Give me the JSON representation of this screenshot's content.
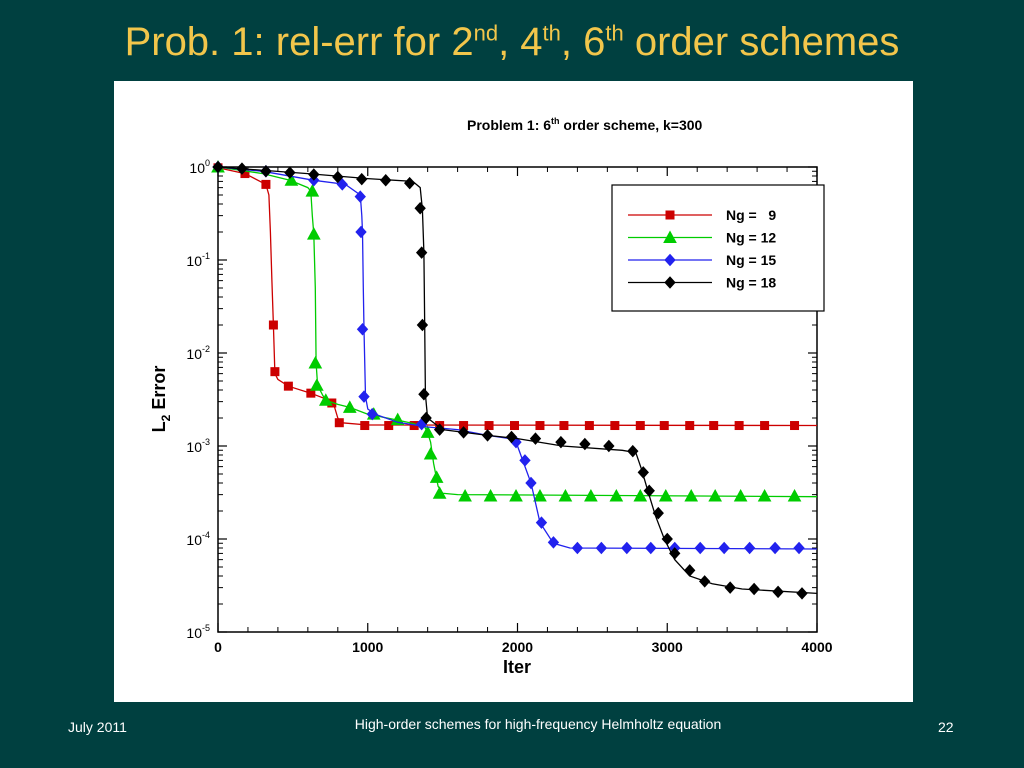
{
  "slide": {
    "title_parts": [
      "Prob. 1: rel-err for 2",
      "nd",
      ", 4",
      "th",
      ", 6",
      "th",
      " order schemes"
    ],
    "footer_date": "July 2011",
    "footer_center": "High-order schemes for high-frequency Helmholtz equation",
    "page_number": "22",
    "colors": {
      "background": "#004040",
      "title": "#f2c64b",
      "footer": "#ffffff"
    }
  },
  "chart_data": {
    "type": "line",
    "title": "Problem 1:   6th order scheme,  k=300",
    "title_parts": [
      "Problem 1:   6",
      "th",
      " order scheme,  k=300"
    ],
    "xlabel": "Iter",
    "ylabel": "L2 Error",
    "ylabel_parts": [
      "L",
      "2",
      " Error"
    ],
    "xlim": [
      0,
      4000
    ],
    "ylim": [
      1e-05,
      1
    ],
    "yscale": "log",
    "grid": false,
    "legend_position": "top-right",
    "x_ticks": [
      {
        "value": 0,
        "label": "0"
      },
      {
        "value": 1000,
        "label": "1000"
      },
      {
        "value": 2000,
        "label": "2000"
      },
      {
        "value": 3000,
        "label": "3000"
      },
      {
        "value": 4000,
        "label": "4000"
      }
    ],
    "y_ticks": [
      {
        "exp": 0,
        "base": "10",
        "sup": "0"
      },
      {
        "exp": -1,
        "base": "10",
        "sup": "-1"
      },
      {
        "exp": -2,
        "base": "10",
        "sup": "-2"
      },
      {
        "exp": -3,
        "base": "10",
        "sup": "-3"
      },
      {
        "exp": -4,
        "base": "10",
        "sup": "-4"
      },
      {
        "exp": -5,
        "base": "10",
        "sup": "-5"
      }
    ],
    "series": [
      {
        "name": "Ng =   9",
        "color": "#cc0000",
        "marker": "square",
        "points": [
          [
            0,
            0.98
          ],
          [
            180,
            0.85
          ],
          [
            320,
            0.65
          ],
          [
            340,
            0.5
          ],
          [
            350,
            0.2
          ],
          [
            360,
            0.06
          ],
          [
            370,
            0.02
          ],
          [
            380,
            0.006
          ],
          [
            400,
            0.0052
          ],
          [
            470,
            0.0044
          ],
          [
            620,
            0.0037
          ],
          [
            700,
            0.0033
          ],
          [
            770,
            0.0029
          ],
          [
            800,
            0.002
          ],
          [
            820,
            0.00178
          ],
          [
            1000,
            0.00168
          ],
          [
            4000,
            0.00166
          ]
        ],
        "markers": [
          [
            0,
            0.98
          ],
          [
            180,
            0.85
          ],
          [
            320,
            0.65
          ],
          [
            370,
            0.02
          ],
          [
            380,
            0.0063
          ],
          [
            470,
            0.0044
          ],
          [
            620,
            0.0037
          ],
          [
            760,
            0.0029
          ],
          [
            810,
            0.00178
          ],
          [
            980,
            0.00166
          ],
          [
            1140,
            0.00166
          ],
          [
            1310,
            0.00166
          ],
          [
            1480,
            0.00166
          ],
          [
            1640,
            0.00166
          ],
          [
            1810,
            0.00166
          ],
          [
            1980,
            0.00166
          ],
          [
            2150,
            0.00166
          ],
          [
            2310,
            0.00166
          ],
          [
            2480,
            0.00166
          ],
          [
            2650,
            0.00166
          ],
          [
            2820,
            0.00166
          ],
          [
            2980,
            0.00166
          ],
          [
            3150,
            0.00166
          ],
          [
            3310,
            0.00166
          ],
          [
            3480,
            0.00166
          ],
          [
            3650,
            0.00166
          ],
          [
            3850,
            0.00166
          ]
        ]
      },
      {
        "name": "Ng = 12",
        "color": "#00cc00",
        "marker": "triangle",
        "points": [
          [
            0,
            1.0
          ],
          [
            300,
            0.85
          ],
          [
            480,
            0.72
          ],
          [
            600,
            0.6
          ],
          [
            620,
            0.55
          ],
          [
            630,
            0.3
          ],
          [
            640,
            0.19
          ],
          [
            650,
            0.05
          ],
          [
            655,
            0.0078
          ],
          [
            665,
            0.0045
          ],
          [
            700,
            0.0035
          ],
          [
            720,
            0.0031
          ],
          [
            800,
            0.0028
          ],
          [
            880,
            0.0026
          ],
          [
            1000,
            0.0022
          ],
          [
            1200,
            0.0019
          ],
          [
            1300,
            0.00175
          ],
          [
            1380,
            0.0016
          ],
          [
            1400,
            0.0014
          ],
          [
            1420,
            0.0011
          ],
          [
            1440,
            0.00065
          ],
          [
            1470,
            0.00037
          ],
          [
            1500,
            0.00031
          ],
          [
            1600,
            0.0003
          ],
          [
            4000,
            0.000285
          ]
        ],
        "markers": [
          [
            0,
            1.0
          ],
          [
            490,
            0.72
          ],
          [
            630,
            0.55
          ],
          [
            640,
            0.19
          ],
          [
            650,
            0.0078
          ],
          [
            660,
            0.0045
          ],
          [
            720,
            0.0031
          ],
          [
            880,
            0.0026
          ],
          [
            1040,
            0.0022
          ],
          [
            1200,
            0.00192
          ],
          [
            1400,
            0.0014
          ],
          [
            1420,
            0.00082
          ],
          [
            1460,
            0.00046
          ],
          [
            1480,
            0.00031
          ],
          [
            1650,
            0.00029
          ],
          [
            1820,
            0.00029
          ],
          [
            1990,
            0.00029
          ],
          [
            2150,
            0.00029
          ],
          [
            2320,
            0.00029
          ],
          [
            2490,
            0.00029
          ],
          [
            2660,
            0.00029
          ],
          [
            2820,
            0.00029
          ],
          [
            2990,
            0.00029
          ],
          [
            3160,
            0.00029
          ],
          [
            3320,
            0.00029
          ],
          [
            3490,
            0.00029
          ],
          [
            3650,
            0.00029
          ],
          [
            3850,
            0.00029
          ]
        ]
      },
      {
        "name": "Ng = 15",
        "color": "#2222ee",
        "marker": "diamond",
        "points": [
          [
            0,
            1.0
          ],
          [
            300,
            0.9
          ],
          [
            640,
            0.72
          ],
          [
            850,
            0.65
          ],
          [
            950,
            0.5
          ],
          [
            960,
            0.3
          ],
          [
            965,
            0.2
          ],
          [
            970,
            0.05
          ],
          [
            975,
            0.018
          ],
          [
            985,
            0.0034
          ],
          [
            1000,
            0.0025
          ],
          [
            1050,
            0.0022
          ],
          [
            1200,
            0.0018
          ],
          [
            1400,
            0.0016
          ],
          [
            1600,
            0.0015
          ],
          [
            1800,
            0.0013
          ],
          [
            1950,
            0.0012
          ],
          [
            2000,
            0.001
          ],
          [
            2050,
            0.0006
          ],
          [
            2090,
            0.0004
          ],
          [
            2150,
            0.00015
          ],
          [
            2240,
            9e-05
          ],
          [
            2350,
            8e-05
          ],
          [
            4000,
            7.8e-05
          ]
        ],
        "markers": [
          [
            0,
            1.0
          ],
          [
            320,
            0.9
          ],
          [
            640,
            0.72
          ],
          [
            830,
            0.65
          ],
          [
            950,
            0.48
          ],
          [
            955,
            0.2
          ],
          [
            965,
            0.018
          ],
          [
            975,
            0.0034
          ],
          [
            1030,
            0.0022
          ],
          [
            1360,
            0.00172
          ],
          [
            1990,
            0.0011
          ],
          [
            2050,
            0.0007
          ],
          [
            2090,
            0.0004
          ],
          [
            2160,
            0.00015
          ],
          [
            2240,
            9.2e-05
          ],
          [
            2400,
            8e-05
          ],
          [
            2560,
            8e-05
          ],
          [
            2730,
            8e-05
          ],
          [
            2890,
            8e-05
          ],
          [
            3050,
            8e-05
          ],
          [
            3220,
            8e-05
          ],
          [
            3380,
            8e-05
          ],
          [
            3550,
            8e-05
          ],
          [
            3720,
            8e-05
          ],
          [
            3880,
            8e-05
          ]
        ]
      },
      {
        "name": "Ng = 18",
        "color": "#000000",
        "marker": "diamond",
        "points": [
          [
            0,
            1.0
          ],
          [
            600,
            0.85
          ],
          [
            1000,
            0.75
          ],
          [
            1300,
            0.7
          ],
          [
            1350,
            0.6
          ],
          [
            1365,
            0.35
          ],
          [
            1375,
            0.12
          ],
          [
            1380,
            0.02
          ],
          [
            1385,
            0.0036
          ],
          [
            1400,
            0.002
          ],
          [
            1500,
            0.0015
          ],
          [
            1800,
            0.0013
          ],
          [
            2000,
            0.0012
          ],
          [
            2300,
            0.001
          ],
          [
            2700,
            0.0009
          ],
          [
            2790,
            0.00085
          ],
          [
            2830,
            0.00055
          ],
          [
            2870,
            0.00033
          ],
          [
            2920,
            0.00018
          ],
          [
            2980,
            0.0001
          ],
          [
            3050,
            6e-05
          ],
          [
            3150,
            4e-05
          ],
          [
            3300,
            3.3e-05
          ],
          [
            3500,
            2.9e-05
          ],
          [
            4000,
            2.6e-05
          ]
        ],
        "markers": [
          [
            0,
            1.0
          ],
          [
            160,
            0.96
          ],
          [
            320,
            0.9
          ],
          [
            480,
            0.87
          ],
          [
            640,
            0.83
          ],
          [
            800,
            0.78
          ],
          [
            960,
            0.74
          ],
          [
            1120,
            0.72
          ],
          [
            1280,
            0.67
          ],
          [
            1350,
            0.36
          ],
          [
            1360,
            0.12
          ],
          [
            1365,
            0.02
          ],
          [
            1375,
            0.0036
          ],
          [
            1390,
            0.002
          ],
          [
            1480,
            0.0015
          ],
          [
            1640,
            0.0014
          ],
          [
            1800,
            0.0013
          ],
          [
            1960,
            0.00125
          ],
          [
            2120,
            0.0012
          ],
          [
            2290,
            0.0011
          ],
          [
            2450,
            0.00105
          ],
          [
            2610,
            0.001
          ],
          [
            2770,
            0.00088
          ],
          [
            2840,
            0.00052
          ],
          [
            2880,
            0.00033
          ],
          [
            2940,
            0.00019
          ],
          [
            3000,
            0.0001
          ],
          [
            3050,
            7e-05
          ],
          [
            3150,
            4.6e-05
          ],
          [
            3250,
            3.5e-05
          ],
          [
            3420,
            3e-05
          ],
          [
            3580,
            2.9e-05
          ],
          [
            3740,
            2.7e-05
          ],
          [
            3900,
            2.6e-05
          ]
        ]
      }
    ]
  }
}
